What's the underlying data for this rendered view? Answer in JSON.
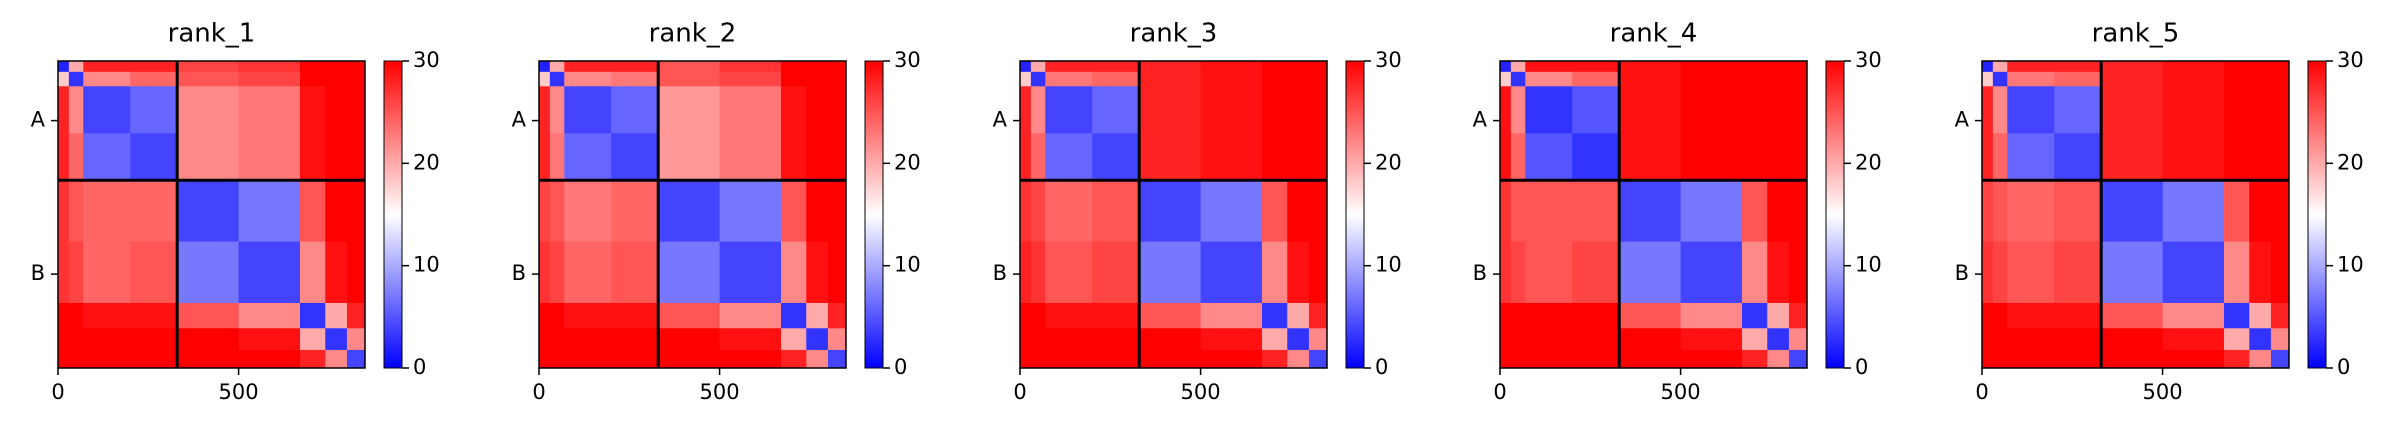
{
  "chart_data": [
    {
      "type": "heatmap",
      "title": "rank_1",
      "colormap": "bwr",
      "x_edges": [
        0,
        30,
        70,
        200,
        330,
        500,
        670,
        740,
        800,
        850
      ],
      "y_edges": [
        0,
        30,
        70,
        200,
        330,
        500,
        670,
        740,
        800,
        850
      ],
      "values": [
        [
          2,
          20,
          28,
          28,
          26,
          27,
          30,
          30,
          30
        ],
        [
          18,
          3,
          22,
          24,
          25,
          26,
          30,
          30,
          30
        ],
        [
          28,
          22,
          4,
          6,
          22,
          23,
          29,
          30,
          30
        ],
        [
          28,
          24,
          6,
          4,
          22,
          23,
          29,
          30,
          30
        ],
        [
          27,
          25,
          24,
          24,
          4,
          7,
          25,
          30,
          30
        ],
        [
          27,
          26,
          24,
          25,
          7,
          4,
          22,
          29,
          30
        ],
        [
          30,
          30,
          29,
          29,
          25,
          22,
          3,
          20,
          28
        ],
        [
          30,
          30,
          30,
          30,
          30,
          29,
          20,
          3,
          22
        ],
        [
          30,
          30,
          30,
          30,
          30,
          30,
          28,
          22,
          4
        ]
      ],
      "chain_breaks": [
        330
      ],
      "xlim": [
        0,
        850
      ],
      "ylim": [
        850,
        0
      ],
      "xticks": [
        0,
        500
      ],
      "yticks": [
        {
          "value": 165,
          "label": "A"
        },
        {
          "value": 590,
          "label": "B"
        }
      ],
      "clim": [
        0,
        30
      ],
      "cticks": [
        0,
        10,
        20,
        30
      ]
    },
    {
      "type": "heatmap",
      "title": "rank_2",
      "colormap": "bwr",
      "x_edges": [
        0,
        30,
        70,
        200,
        330,
        500,
        670,
        740,
        800,
        850
      ],
      "y_edges": [
        0,
        30,
        70,
        200,
        330,
        500,
        670,
        740,
        800,
        850
      ],
      "values": [
        [
          2,
          20,
          28,
          28,
          25,
          27,
          30,
          30,
          30
        ],
        [
          18,
          3,
          22,
          23,
          25,
          26,
          30,
          30,
          30
        ],
        [
          28,
          22,
          4,
          6,
          21,
          23,
          29,
          30,
          30
        ],
        [
          28,
          23,
          6,
          4,
          21,
          23,
          29,
          30,
          30
        ],
        [
          26,
          25,
          23,
          24,
          4,
          7,
          25,
          30,
          30
        ],
        [
          27,
          26,
          24,
          25,
          7,
          4,
          22,
          29,
          30
        ],
        [
          30,
          30,
          29,
          29,
          25,
          22,
          3,
          20,
          28
        ],
        [
          30,
          30,
          30,
          30,
          30,
          29,
          20,
          3,
          22
        ],
        [
          30,
          30,
          30,
          30,
          30,
          30,
          28,
          22,
          4
        ]
      ],
      "chain_breaks": [
        330
      ],
      "xlim": [
        0,
        850
      ],
      "ylim": [
        850,
        0
      ],
      "xticks": [
        0,
        500
      ],
      "yticks": [
        {
          "value": 165,
          "label": "A"
        },
        {
          "value": 590,
          "label": "B"
        }
      ],
      "clim": [
        0,
        30
      ],
      "cticks": [
        0,
        10,
        20,
        30
      ]
    },
    {
      "type": "heatmap",
      "title": "rank_3",
      "colormap": "bwr",
      "x_edges": [
        0,
        30,
        70,
        200,
        330,
        500,
        670,
        740,
        800,
        850
      ],
      "y_edges": [
        0,
        30,
        70,
        200,
        330,
        500,
        670,
        740,
        800,
        850
      ],
      "values": [
        [
          2,
          20,
          28,
          28,
          28,
          29,
          30,
          30,
          30
        ],
        [
          18,
          3,
          23,
          24,
          28,
          29,
          30,
          30,
          30
        ],
        [
          28,
          22,
          4,
          6,
          28,
          29,
          30,
          30,
          30
        ],
        [
          28,
          24,
          6,
          4,
          28,
          29,
          30,
          30,
          30
        ],
        [
          27,
          26,
          24,
          25,
          4,
          7,
          25,
          30,
          30
        ],
        [
          28,
          27,
          25,
          26,
          7,
          4,
          22,
          29,
          30
        ],
        [
          30,
          30,
          29,
          29,
          25,
          22,
          3,
          20,
          28
        ],
        [
          30,
          30,
          30,
          30,
          30,
          29,
          20,
          3,
          22
        ],
        [
          30,
          30,
          30,
          30,
          30,
          30,
          28,
          22,
          4
        ]
      ],
      "chain_breaks": [
        330
      ],
      "xlim": [
        0,
        850
      ],
      "ylim": [
        850,
        0
      ],
      "xticks": [
        0,
        500
      ],
      "yticks": [
        {
          "value": 165,
          "label": "A"
        },
        {
          "value": 590,
          "label": "B"
        }
      ],
      "clim": [
        0,
        30
      ],
      "cticks": [
        0,
        10,
        20,
        30
      ]
    },
    {
      "type": "heatmap",
      "title": "rank_4",
      "colormap": "bwr",
      "x_edges": [
        0,
        30,
        70,
        200,
        330,
        500,
        670,
        740,
        800,
        850
      ],
      "y_edges": [
        0,
        30,
        70,
        200,
        330,
        500,
        670,
        740,
        800,
        850
      ],
      "values": [
        [
          2,
          20,
          29,
          29,
          29,
          30,
          30,
          30,
          30
        ],
        [
          18,
          3,
          22,
          24,
          29,
          30,
          30,
          30,
          30
        ],
        [
          29,
          22,
          3,
          5,
          29,
          30,
          30,
          30,
          30
        ],
        [
          29,
          24,
          5,
          3,
          29,
          30,
          30,
          30,
          30
        ],
        [
          27,
          25,
          25,
          25,
          4,
          7,
          25,
          30,
          30
        ],
        [
          27,
          26,
          25,
          26,
          7,
          4,
          22,
          29,
          30
        ],
        [
          30,
          30,
          30,
          30,
          25,
          22,
          3,
          20,
          28
        ],
        [
          30,
          30,
          30,
          30,
          30,
          29,
          20,
          3,
          22
        ],
        [
          30,
          30,
          30,
          30,
          30,
          30,
          28,
          22,
          4
        ]
      ],
      "chain_breaks": [
        330
      ],
      "xlim": [
        0,
        850
      ],
      "ylim": [
        850,
        0
      ],
      "xticks": [
        0,
        500
      ],
      "yticks": [
        {
          "value": 165,
          "label": "A"
        },
        {
          "value": 590,
          "label": "B"
        }
      ],
      "clim": [
        0,
        30
      ],
      "cticks": [
        0,
        10,
        20,
        30
      ]
    },
    {
      "type": "heatmap",
      "title": "rank_5",
      "colormap": "bwr",
      "x_edges": [
        0,
        30,
        70,
        200,
        330,
        500,
        670,
        740,
        800,
        850
      ],
      "y_edges": [
        0,
        30,
        70,
        200,
        330,
        500,
        670,
        740,
        800,
        850
      ],
      "values": [
        [
          2,
          20,
          28,
          28,
          28,
          29,
          30,
          30,
          30
        ],
        [
          18,
          3,
          23,
          24,
          28,
          29,
          30,
          30,
          30
        ],
        [
          28,
          22,
          4,
          6,
          28,
          29,
          30,
          30,
          30
        ],
        [
          28,
          24,
          6,
          4,
          28,
          29,
          30,
          30,
          30
        ],
        [
          26,
          25,
          24,
          25,
          4,
          7,
          25,
          30,
          30
        ],
        [
          27,
          26,
          25,
          26,
          7,
          4,
          22,
          29,
          30
        ],
        [
          30,
          30,
          29,
          29,
          25,
          22,
          3,
          20,
          28
        ],
        [
          30,
          30,
          30,
          30,
          30,
          29,
          20,
          3,
          22
        ],
        [
          30,
          30,
          30,
          30,
          30,
          30,
          28,
          22,
          4
        ]
      ],
      "chain_breaks": [
        330
      ],
      "xlim": [
        0,
        850
      ],
      "ylim": [
        850,
        0
      ],
      "xticks": [
        0,
        500
      ],
      "yticks": [
        {
          "value": 165,
          "label": "A"
        },
        {
          "value": 590,
          "label": "B"
        }
      ],
      "clim": [
        0,
        30
      ],
      "cticks": [
        0,
        10,
        20,
        30
      ]
    }
  ]
}
